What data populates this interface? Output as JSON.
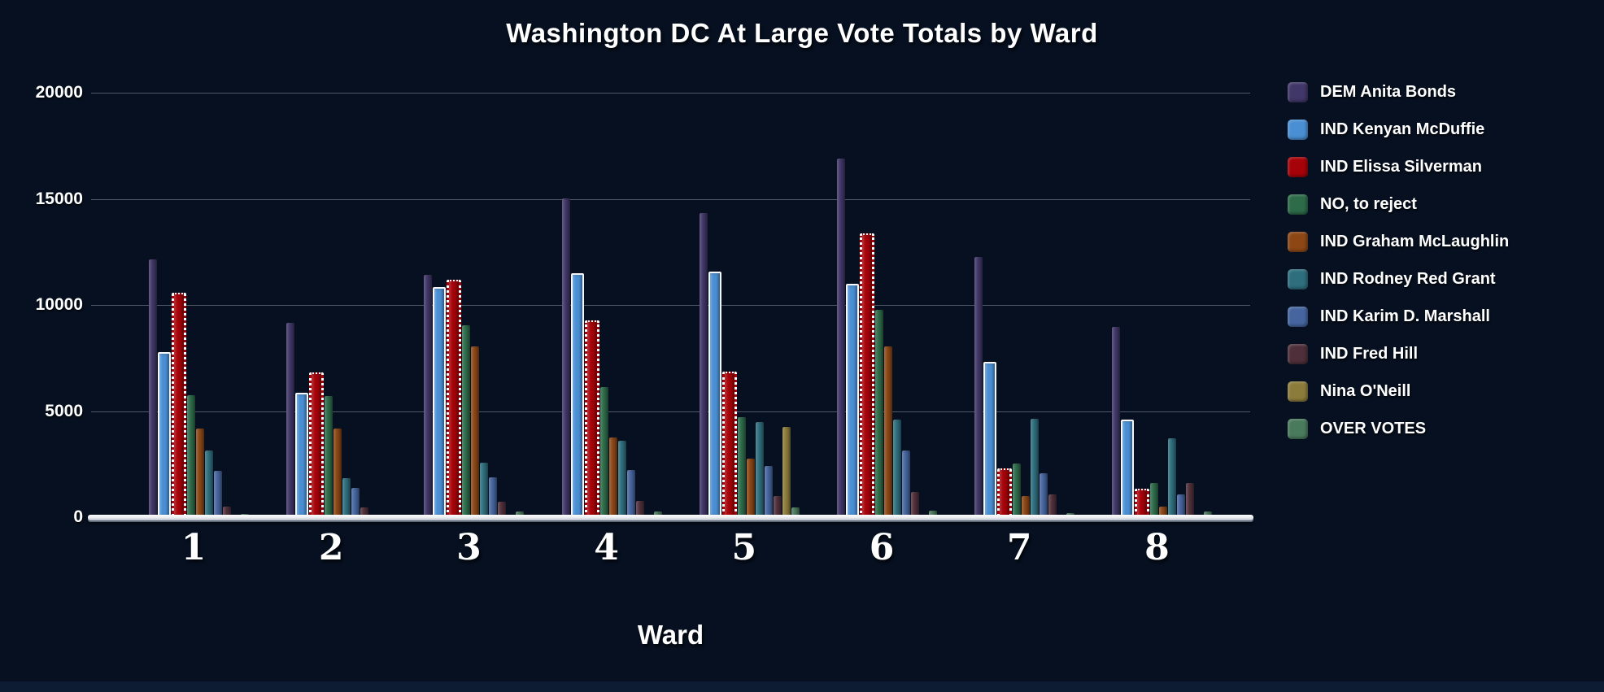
{
  "page": {
    "background_color": "#061020",
    "footer_strip_color": "#0d1b33",
    "text_color": "#ffffff",
    "gridline_color": "#aab4c0"
  },
  "chart_data": {
    "type": "bar",
    "title": "Washington DC At Large Vote Totals by Ward",
    "xlabel": "Ward",
    "ylabel": "",
    "ylim": [
      0,
      20000
    ],
    "yticks": [
      "0",
      "5000",
      "10000",
      "15000",
      "20000"
    ],
    "grid": true,
    "legend_position": "right",
    "categories": [
      "1",
      "2",
      "3",
      "4",
      "5",
      "6",
      "7",
      "8"
    ],
    "series": [
      {
        "name": "DEM Anita Bonds",
        "color": "#413768",
        "style": "plain",
        "values": [
          12150,
          9150,
          11400,
          15030,
          14330,
          16900,
          12260,
          8950
        ]
      },
      {
        "name": "IND Kenyan McDuffie",
        "color": "#4a8fd3",
        "style": "framed",
        "values": [
          7610,
          5690,
          10680,
          11330,
          11430,
          10840,
          7160,
          4450
        ]
      },
      {
        "name": "IND Elissa Silverman",
        "color": "#a50309",
        "style": "dotted",
        "values": [
          10500,
          6740,
          11110,
          9190,
          6800,
          13310,
          2220,
          1280
        ]
      },
      {
        "name": "NO, to reject",
        "color": "#2d6b49",
        "style": "plain",
        "values": [
          5760,
          5720,
          9050,
          6140,
          4730,
          9780,
          2510,
          1610
        ]
      },
      {
        "name": "IND Graham McLaughlin",
        "color": "#8c4715",
        "style": "plain",
        "values": [
          4180,
          4160,
          8060,
          3770,
          2770,
          8050,
          1000,
          490
        ]
      },
      {
        "name": "IND Rodney Red Grant",
        "color": "#2e6e7d",
        "style": "plain",
        "values": [
          3160,
          1830,
          2560,
          3610,
          4500,
          4600,
          4640,
          3710
        ]
      },
      {
        "name": "IND Karim D. Marshall",
        "color": "#46659f",
        "style": "plain",
        "values": [
          2180,
          1370,
          1880,
          2240,
          2430,
          3160,
          2050,
          1060
        ]
      },
      {
        "name": "IND Fred Hill",
        "color": "#4f2f3a",
        "style": "plain",
        "values": [
          510,
          470,
          730,
          770,
          990,
          1180,
          1060,
          1600
        ]
      },
      {
        "name": "Nina O'Neill",
        "color": "#8c7c3b",
        "style": "plain",
        "values": [
          40,
          40,
          40,
          50,
          4250,
          50,
          40,
          50
        ]
      },
      {
        "name": "OVER VOTES",
        "color": "#4a7a5c",
        "style": "plain",
        "values": [
          150,
          130,
          250,
          280,
          450,
          320,
          200,
          250
        ]
      }
    ]
  }
}
